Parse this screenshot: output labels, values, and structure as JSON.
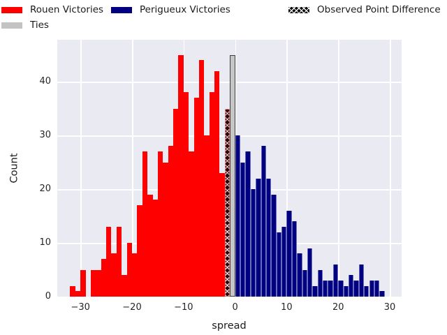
{
  "legend": {
    "items": [
      {
        "label": "Rouen Victories",
        "swatch": "red"
      },
      {
        "label": "Perigueux Victories",
        "swatch": "navy"
      },
      {
        "label": "Observed Point Difference",
        "swatch": "hatched"
      },
      {
        "label": "Ties",
        "swatch": "gray"
      }
    ]
  },
  "chart_data": {
    "type": "bar",
    "subtype": "histogram",
    "title": "",
    "xlabel": "spread",
    "ylabel": "Count",
    "xlim": [
      -34.5,
      32.3
    ],
    "ylim": [
      0,
      47.8
    ],
    "bin_width": 1,
    "grid": true,
    "background": "#eaeaf2",
    "gridcolor": "#ffffff",
    "legend_position": "top-left",
    "xticks": [
      {
        "v": -30,
        "label": "−30"
      },
      {
        "v": -20,
        "label": "−20"
      },
      {
        "v": -10,
        "label": "−10"
      },
      {
        "v": 0,
        "label": "0"
      },
      {
        "v": 10,
        "label": "10"
      },
      {
        "v": 20,
        "label": "20"
      },
      {
        "v": 30,
        "label": "30"
      }
    ],
    "yticks": [
      {
        "v": 0,
        "label": "0"
      },
      {
        "v": 10,
        "label": "10"
      },
      {
        "v": 20,
        "label": "20"
      },
      {
        "v": 30,
        "label": "30"
      },
      {
        "v": 40,
        "label": "40"
      }
    ],
    "series": [
      {
        "name": "Rouen Victories",
        "color": "#ff0000",
        "style": "rouen",
        "bin_start": -32,
        "values": [
          2,
          1,
          5,
          0,
          5,
          5,
          7,
          13,
          8,
          13,
          4,
          10,
          8,
          17,
          27,
          19,
          18,
          27,
          25,
          28,
          35,
          45,
          38,
          27,
          37,
          44,
          30,
          38,
          42,
          23
        ]
      },
      {
        "name": "Observed Point Difference",
        "color": "#330007",
        "hatch": "x",
        "style": "observed",
        "bin_start": -2,
        "values": [
          35
        ]
      },
      {
        "name": "Ties",
        "color": "#c6c6c6",
        "style": "ties",
        "bin_start": -1,
        "values": [
          45
        ]
      },
      {
        "name": "Perigueux Victories",
        "color": "#000080",
        "style": "perigueux",
        "bin_start": 0,
        "values": [
          30,
          25,
          27,
          20,
          22,
          28,
          22,
          19,
          12,
          13,
          16,
          14,
          8,
          5,
          9,
          2,
          5,
          3,
          3,
          6,
          3,
          2,
          4,
          3,
          6,
          2,
          3,
          3,
          1
        ]
      }
    ]
  }
}
